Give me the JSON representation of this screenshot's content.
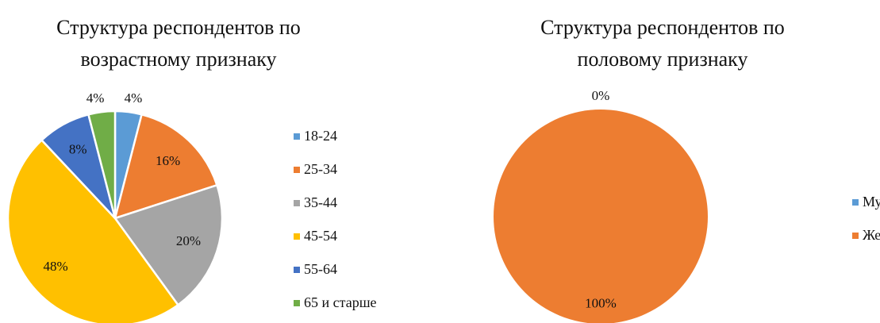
{
  "chart_data": [
    {
      "type": "pie",
      "title": "Структура респондентов по возрастному признаку",
      "categories": [
        "18-24",
        "25-34",
        "35-44",
        "45-54",
        "55-64",
        "65 и старше"
      ],
      "values": [
        4,
        16,
        20,
        48,
        8,
        4
      ],
      "value_labels": [
        "4%",
        "16%",
        "20%",
        "48%",
        "8%",
        "4%"
      ],
      "colors": [
        "#5b9bd5",
        "#ed7d31",
        "#a5a5a5",
        "#ffc000",
        "#4472c4",
        "#70ad47"
      ],
      "legend": "right"
    },
    {
      "type": "pie",
      "title": "Структура респондентов по половому признаку",
      "categories": [
        "Мужской",
        "Женский"
      ],
      "values": [
        0,
        100
      ],
      "value_labels": [
        "0%",
        "100%"
      ],
      "colors": [
        "#5b9bd5",
        "#ed7d31"
      ],
      "legend": "right"
    }
  ]
}
